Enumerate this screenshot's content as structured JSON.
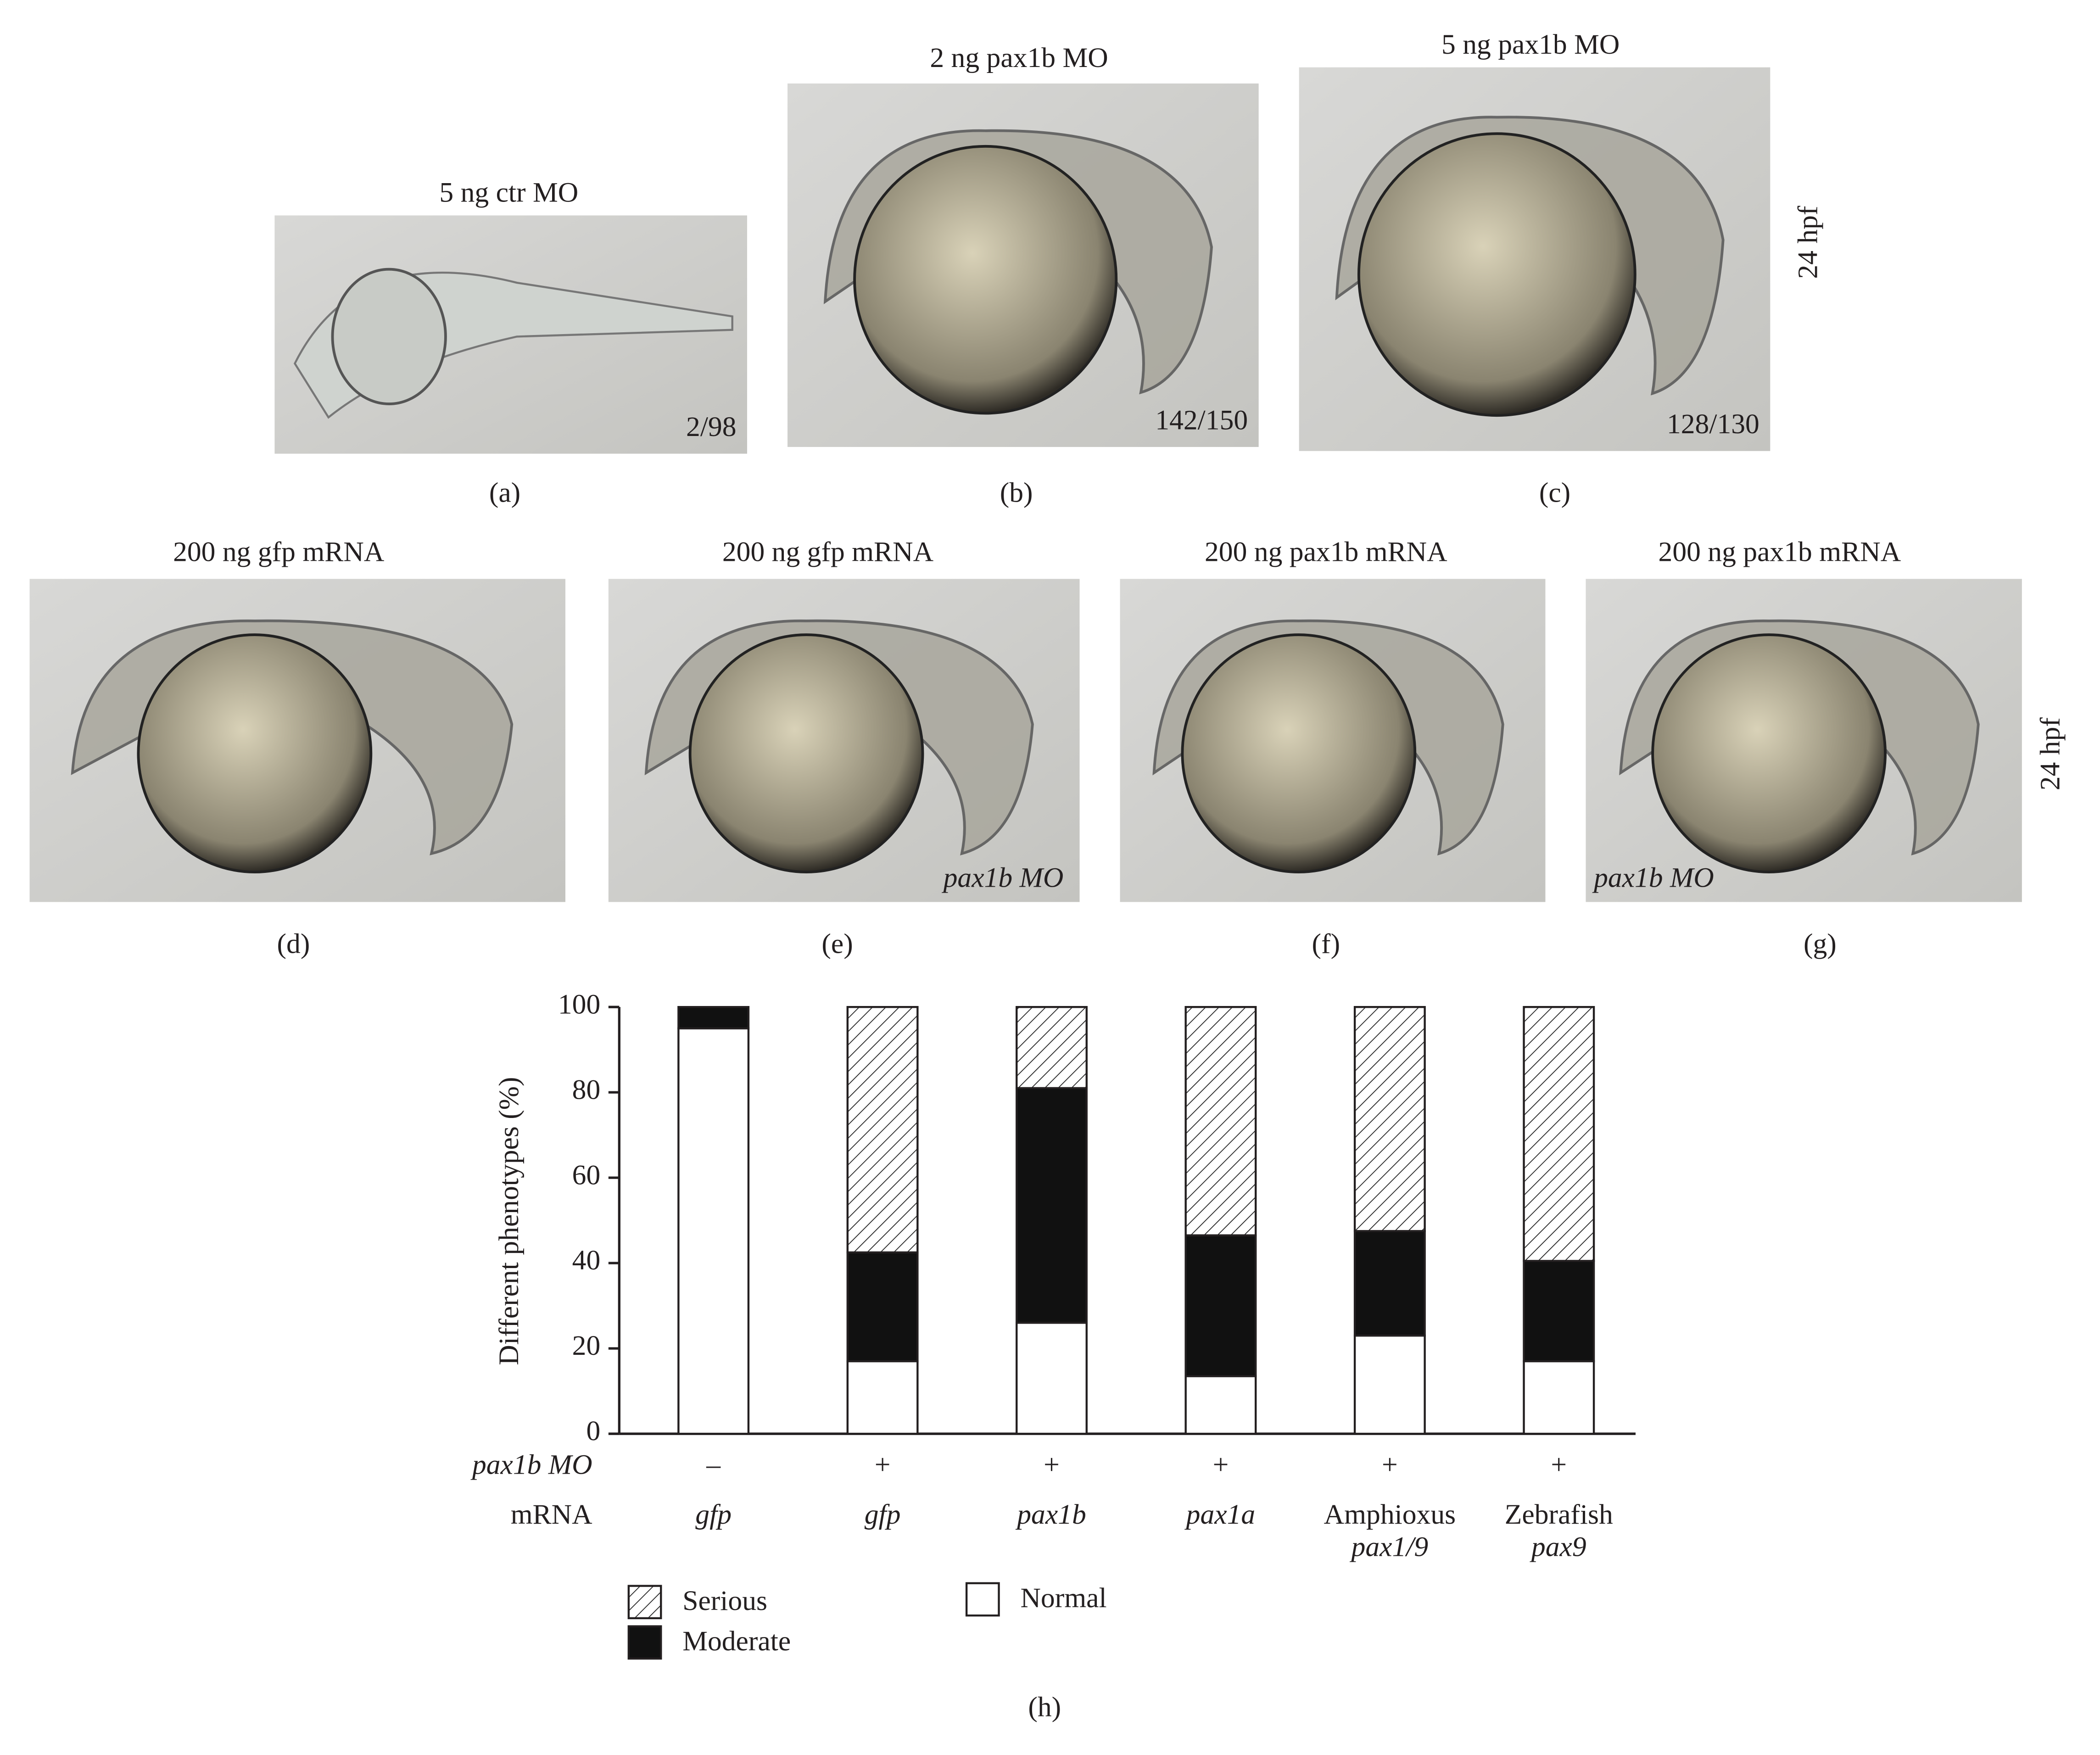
{
  "panels": [
    {
      "title": "5 ng ctr MO",
      "count": "2/98",
      "label": "(a)"
    },
    {
      "title": "2 ng pax1b MO",
      "count": "142/150",
      "label": "(b)"
    },
    {
      "title": "5 ng pax1b MO",
      "count": "128/130",
      "label": "(c)"
    },
    {
      "title": "200 ng gfp mRNA",
      "label": "(d)"
    },
    {
      "title": "200 ng gfp mRNA",
      "note": "pax1b MO",
      "label": "(e)"
    },
    {
      "title": "200 ng pax1b mRNA",
      "label": "(f)"
    },
    {
      "title": "200 ng pax1b mRNA",
      "note": "pax1b MO",
      "label": "(g)"
    }
  ],
  "side_labels": [
    "24 hpf",
    "24 hpf"
  ],
  "chart_data": {
    "type": "stacked_bar",
    "label": "(h)",
    "ylabel": "Different phenotypes (%)",
    "ylim": [
      0,
      100
    ],
    "yticks": [
      0,
      20,
      40,
      60,
      80,
      100
    ],
    "rows": [
      {
        "label": "pax1b MO",
        "values": [
          "–",
          "+",
          "+",
          "+",
          "+",
          "+"
        ]
      },
      {
        "label": "mRNA"
      }
    ],
    "categories": [
      [
        "gfp"
      ],
      [
        "gfp"
      ],
      [
        "pax1b"
      ],
      [
        "pax1a"
      ],
      [
        "Amphioxus",
        "pax1/9"
      ],
      [
        "Zebrafish",
        "pax9"
      ]
    ],
    "series": [
      {
        "name": "Normal",
        "color": "#ffffff",
        "values": [
          95,
          17,
          26,
          13.5,
          23,
          17
        ]
      },
      {
        "name": "Moderate",
        "color": "#111111",
        "values": [
          5,
          25.5,
          55,
          33,
          24.5,
          23.5
        ]
      },
      {
        "name": "Serious",
        "color": "#ffffff",
        "pattern": "hatch",
        "values": [
          0,
          57.5,
          19,
          53.5,
          52.5,
          59.5
        ]
      }
    ]
  }
}
